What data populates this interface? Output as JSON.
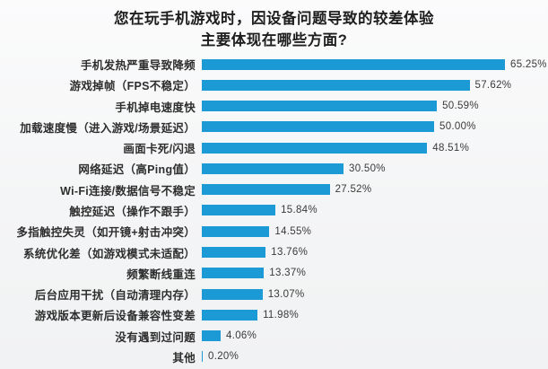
{
  "title": {
    "line1": "您在玩手机游戏时，因设备问题导致的较差体验",
    "line2": "主要体现在哪些方面?"
  },
  "chart_data": {
    "type": "bar",
    "orientation": "horizontal",
    "title": "您在玩手机游戏时，因设备问题导致的较差体验 主要体现在哪些方面?",
    "categories": [
      "手机发热严重导致降频",
      "游戏掉帧（FPS不稳定）",
      "手机掉电速度快",
      "加载速度慢（进入游戏/场景延迟）",
      "画面卡死/闪退",
      "网络延迟（高Ping值）",
      "Wi-Fi连接/数据信号不稳定",
      "触控延迟（操作不跟手）",
      "多指触控失灵（如开镜+射击冲突）",
      "系统优化差（如游戏模式未适配）",
      "频繁断线重连",
      "后台应用干扰（自动清理内存）",
      "游戏版本更新后设备兼容性变差",
      "没有遇到过问题",
      "其他"
    ],
    "values": [
      65.25,
      57.62,
      50.59,
      50.0,
      48.51,
      30.5,
      27.52,
      15.84,
      14.55,
      13.76,
      13.37,
      13.07,
      11.98,
      4.06,
      0.2
    ],
    "value_labels": [
      "65.25%",
      "57.62%",
      "50.59%",
      "50.00%",
      "48.51%",
      "30.50%",
      "27.52%",
      "15.84%",
      "14.55%",
      "13.76%",
      "13.37%",
      "13.07%",
      "11.98%",
      "4.06%",
      "0.20%"
    ],
    "bar_color": "#1b9ad5",
    "text_color": "#2e2e2e",
    "xlabel": "",
    "ylabel": "",
    "xlim": [
      0,
      66
    ],
    "grid": false,
    "legend": false,
    "data_label_format": "percent"
  }
}
